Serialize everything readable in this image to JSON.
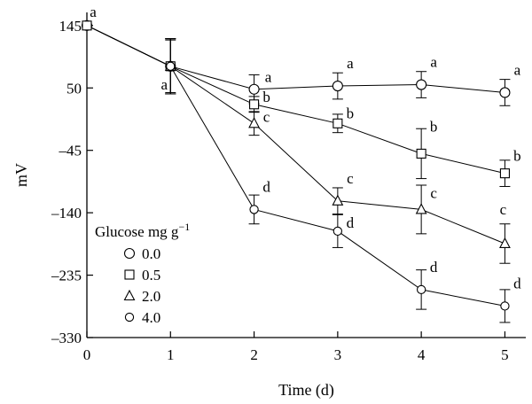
{
  "chart_data": {
    "type": "line",
    "xlabel": "Time (d)",
    "ylabel": "mV",
    "x": [
      0,
      1,
      2,
      3,
      4,
      5
    ],
    "xlim": [
      0,
      5.25
    ],
    "ylim": [
      -330,
      165
    ],
    "xticks": [
      "0",
      "1",
      "2",
      "3",
      "4",
      "5"
    ],
    "yticks": [
      {
        "value": 145,
        "label": "145"
      },
      {
        "value": 50,
        "label": "50"
      },
      {
        "value": -45,
        "label": "–45"
      },
      {
        "value": -140,
        "label": "–140"
      },
      {
        "value": -235,
        "label": "–235"
      },
      {
        "value": -330,
        "label": "–330"
      }
    ],
    "legend": {
      "title_main": "Glucose mg g",
      "title_sup": "−1",
      "placement": "left-middle"
    },
    "series": [
      {
        "name": "0.0",
        "marker": "circle",
        "values": [
          145,
          83,
          48,
          53,
          55,
          43
        ],
        "errors": [
          0,
          42,
          22,
          20,
          20,
          20
        ],
        "labels": [
          "a",
          "a",
          "a",
          "a",
          "a",
          "a"
        ]
      },
      {
        "name": "0.5",
        "marker": "square",
        "values": [
          145,
          83,
          25,
          -4,
          -50,
          -80
        ],
        "errors": [
          0,
          40,
          12,
          14,
          38,
          20
        ],
        "labels": [
          "",
          "",
          "b",
          "b",
          "b",
          "b"
        ]
      },
      {
        "name": "2.0",
        "marker": "triangle",
        "values": [
          145,
          83,
          -4,
          -122,
          -135,
          -187
        ],
        "errors": [
          0,
          42,
          18,
          20,
          37,
          30
        ],
        "labels": [
          "",
          "",
          "c",
          "c",
          "c",
          "c"
        ]
      },
      {
        "name": "4.0",
        "marker": "circle-small",
        "values": [
          145,
          83,
          -135,
          -168,
          -257,
          -282
        ],
        "errors": [
          0,
          42,
          22,
          25,
          30,
          25
        ],
        "labels": [
          "",
          "",
          "d",
          "d",
          "d",
          "d"
        ]
      }
    ]
  }
}
